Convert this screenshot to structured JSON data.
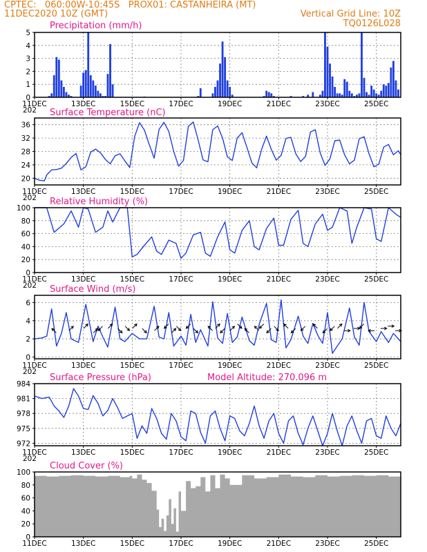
{
  "header": {
    "line1_left": "CPTEC:   060:00W-10:45S   PROX01: CASTANHEIRA (MT)",
    "line2_left": "11DEC2020 10Z (GMT)",
    "line2_right": "Vertical Grid Line: 10Z",
    "line3_right": "TQ0126L028",
    "altitude_label": "Model Altitude: 270.096  m"
  },
  "colors": {
    "header": "#e07b14",
    "panel_title": "#e3178a",
    "series": "#1f3fe0",
    "arrow": "#000000",
    "cloud": "#a9a9a9"
  },
  "x_axis": {
    "start_label": "11DEC2020 10Z",
    "total_days": 15,
    "tick_labels": [
      "11DEC",
      "13DEC",
      "15DEC",
      "17DEC",
      "19DEC",
      "21DEC",
      "23DEC",
      "25DEC"
    ],
    "year_stub": "202"
  },
  "chart_data": [
    {
      "id": "precip",
      "type": "bar",
      "title": "Precipitation (mm/h)",
      "ylim": [
        0,
        5
      ],
      "yticks": [
        "0",
        "1",
        "2",
        "3",
        "4",
        "5"
      ],
      "grid": true,
      "x_day": [
        0.6,
        0.7,
        0.8,
        0.9,
        1.0,
        1.1,
        1.2,
        1.3,
        1.4,
        1.5,
        1.9,
        2.0,
        2.1,
        2.2,
        2.3,
        2.4,
        2.5,
        2.6,
        2.7,
        2.8,
        2.9,
        3.0,
        3.1,
        3.2,
        4.5,
        6.7,
        6.8,
        7.3,
        7.4,
        7.5,
        7.6,
        7.7,
        7.8,
        7.9,
        8.0,
        8.1,
        9.4,
        9.5,
        9.6,
        9.7,
        9.8,
        10.5,
        11.0,
        11.2,
        11.4,
        11.7,
        11.8,
        11.9,
        12.0,
        12.1,
        12.2,
        12.3,
        12.4,
        12.5,
        12.6,
        12.7,
        12.8,
        12.9,
        13.0,
        13.1,
        13.2,
        13.3,
        13.4,
        13.5,
        13.6,
        13.7,
        13.8,
        13.9,
        14.0,
        14.1,
        14.2,
        14.3,
        14.4,
        14.5,
        14.6,
        14.7,
        14.8,
        14.9
      ],
      "values": [
        0.1,
        0.3,
        1.7,
        3.1,
        2.9,
        1.3,
        0.8,
        0.4,
        0.2,
        0.1,
        0.9,
        1.9,
        2.1,
        5.0,
        1.7,
        1.3,
        0.9,
        0.5,
        0.3,
        0.1,
        0.1,
        1.8,
        4.1,
        1.0,
        0.05,
        0.1,
        0.7,
        0.3,
        0.8,
        1.3,
        2.6,
        4.3,
        3.1,
        1.3,
        0.8,
        0.2,
        0.1,
        0.5,
        0.4,
        0.3,
        0.1,
        0.1,
        0.1,
        0.2,
        0.4,
        0.2,
        0.5,
        5.0,
        3.9,
        2.6,
        1.6,
        0.8,
        0.3,
        0.3,
        0.2,
        1.4,
        1.2,
        0.5,
        0.3,
        0.1,
        0.2,
        0.3,
        5.0,
        1.5,
        0.4,
        0.2,
        0.9,
        0.6,
        0.3,
        0.2,
        0.5,
        1.0,
        0.9,
        1.1,
        2.3,
        2.8,
        1.3,
        0.6
      ]
    },
    {
      "id": "temperature",
      "type": "line",
      "title": "Surface Temperature (nC)",
      "ylim": [
        18,
        38
      ],
      "yticks": [
        "20",
        "24",
        "28",
        "32",
        "36"
      ],
      "grid": true,
      "x_day": [
        0,
        0.2,
        0.4,
        0.5,
        0.7,
        0.9,
        1.1,
        1.3,
        1.5,
        1.7,
        1.9,
        2.1,
        2.3,
        2.5,
        2.7,
        2.9,
        3.1,
        3.3,
        3.5,
        3.7,
        3.9,
        4.1,
        4.3,
        4.5,
        4.7,
        4.9,
        5.1,
        5.3,
        5.5,
        5.7,
        5.9,
        6.1,
        6.3,
        6.5,
        6.7,
        6.9,
        7.1,
        7.3,
        7.5,
        7.7,
        7.9,
        8.1,
        8.3,
        8.5,
        8.7,
        8.9,
        9.1,
        9.3,
        9.5,
        9.7,
        9.9,
        10.1,
        10.3,
        10.5,
        10.7,
        10.9,
        11.1,
        11.3,
        11.5,
        11.7,
        11.9,
        12.1,
        12.3,
        12.5,
        12.7,
        12.9,
        13.1,
        13.3,
        13.5,
        13.7,
        13.9,
        14.1,
        14.3,
        14.5,
        14.7,
        14.9,
        15.0
      ],
      "values": [
        20,
        19.4,
        19.2,
        21,
        22.5,
        22.6,
        23,
        24.4,
        26.2,
        27.4,
        22.5,
        23.4,
        27.8,
        28.7,
        27.6,
        25.6,
        24.3,
        26.7,
        27.3,
        25.2,
        23.2,
        32.5,
        36.6,
        34.4,
        30.0,
        26.0,
        34.6,
        36.7,
        34.0,
        28.0,
        23.6,
        25.3,
        35.5,
        36.8,
        31.5,
        25.5,
        24.9,
        34.5,
        35.6,
        32.0,
        26.4,
        25.3,
        32.0,
        33.6,
        29.2,
        24.6,
        23.1,
        28.6,
        32.6,
        28.6,
        25.4,
        26.8,
        31.9,
        32.2,
        27.3,
        25.0,
        26.5,
        33.8,
        34.5,
        27.6,
        23.8,
        25.8,
        31.2,
        31.4,
        27.0,
        24.3,
        25.4,
        31.8,
        32.4,
        27.3,
        23.4,
        24.2,
        29.3,
        30.1,
        27.0,
        28.2,
        27.0
      ]
    },
    {
      "id": "humidity",
      "type": "line",
      "title": "Relative Humidity (%)",
      "ylim": [
        0,
        100
      ],
      "yticks": [
        "0",
        "20",
        "40",
        "60",
        "80",
        "100"
      ],
      "grid": true,
      "x_day": [
        0,
        0.5,
        0.8,
        1.2,
        1.5,
        1.8,
        2.0,
        2.2,
        2.5,
        2.8,
        3.0,
        3.2,
        3.5,
        3.8,
        4.0,
        4.2,
        4.5,
        4.8,
        5.0,
        5.2,
        5.5,
        5.8,
        6.0,
        6.2,
        6.5,
        6.8,
        7.0,
        7.2,
        7.5,
        7.8,
        8.0,
        8.2,
        8.5,
        8.8,
        9.0,
        9.2,
        9.5,
        9.8,
        10.0,
        10.2,
        10.5,
        10.8,
        11.0,
        11.2,
        11.5,
        11.8,
        12.0,
        12.2,
        12.5,
        12.8,
        13.0,
        13.2,
        13.5,
        13.8,
        14.0,
        14.2,
        14.5,
        14.8,
        15.0
      ],
      "values": [
        100,
        100,
        62,
        75,
        95,
        70,
        100,
        98,
        62,
        70,
        95,
        78,
        100,
        100,
        24,
        28,
        42,
        55,
        33,
        28,
        50,
        45,
        22,
        30,
        58,
        62,
        30,
        25,
        55,
        78,
        35,
        30,
        65,
        80,
        40,
        35,
        68,
        84,
        42,
        42,
        82,
        96,
        45,
        40,
        75,
        90,
        65,
        70,
        100,
        95,
        45,
        70,
        100,
        98,
        52,
        48,
        100,
        90,
        85
      ]
    },
    {
      "id": "wind",
      "type": "line",
      "title": "Surface Wind (m/s)",
      "ylim": [
        -0.2,
        6.8
      ],
      "yticks": [
        "0",
        "2",
        "4",
        "6"
      ],
      "grid": true,
      "x_day": [
        0,
        0.3,
        0.5,
        0.7,
        0.9,
        1.1,
        1.3,
        1.5,
        1.8,
        2.1,
        2.4,
        2.6,
        2.8,
        3.0,
        3.3,
        3.5,
        3.7,
        4.0,
        4.3,
        4.6,
        4.9,
        5.1,
        5.3,
        5.5,
        5.7,
        6.0,
        6.2,
        6.4,
        6.6,
        6.8,
        7.1,
        7.3,
        7.5,
        7.7,
        7.9,
        8.1,
        8.3,
        8.5,
        8.8,
        9.0,
        9.2,
        9.5,
        9.7,
        9.9,
        10.1,
        10.3,
        10.5,
        10.8,
        11.0,
        11.2,
        11.4,
        11.6,
        11.8,
        12.0,
        12.2,
        12.4,
        12.6,
        12.9,
        13.1,
        13.3,
        13.5,
        13.7,
        14.0,
        14.2,
        14.5,
        14.7,
        15.0
      ],
      "values": [
        2.0,
        2.1,
        2.3,
        5.3,
        1.2,
        2.6,
        4.9,
        2.0,
        1.6,
        5.8,
        1.7,
        3.4,
        2.2,
        1.1,
        5.5,
        2.0,
        1.7,
        2.6,
        2.0,
        2.0,
        5.6,
        2.2,
        2.0,
        4.9,
        1.2,
        2.3,
        1.3,
        4.7,
        1.6,
        3.0,
        1.2,
        6.1,
        2.1,
        1.5,
        4.8,
        1.6,
        2.2,
        4.4,
        1.8,
        1.3,
        3.6,
        5.9,
        1.9,
        1.6,
        6.3,
        1.0,
        1.9,
        4.5,
        2.3,
        1.5,
        3.7,
        2.4,
        1.5,
        4.9,
        0.4,
        1.2,
        2.0,
        5.4,
        2.2,
        1.3,
        6.0,
        2.8,
        1.7,
        2.8,
        1.6,
        2.6,
        1.7
      ],
      "arrows": [
        {
          "day": 0.8,
          "dir": "nw"
        },
        {
          "day": 1.5,
          "dir": "ne"
        },
        {
          "day": 2.1,
          "dir": "ne"
        },
        {
          "day": 2.5,
          "dir": "ne"
        },
        {
          "day": 2.7,
          "dir": "sw"
        },
        {
          "day": 3.1,
          "dir": "ne"
        },
        {
          "day": 3.5,
          "dir": "se"
        },
        {
          "day": 3.8,
          "dir": "se"
        },
        {
          "day": 4.1,
          "dir": "ne"
        },
        {
          "day": 4.5,
          "dir": "se"
        },
        {
          "day": 5.0,
          "dir": "ne"
        },
        {
          "day": 5.4,
          "dir": "sw"
        },
        {
          "day": 5.7,
          "dir": "ne"
        },
        {
          "day": 5.9,
          "dir": "se"
        },
        {
          "day": 6.3,
          "dir": "sw"
        },
        {
          "day": 6.6,
          "dir": "se"
        },
        {
          "day": 7.2,
          "dir": "nw"
        },
        {
          "day": 7.5,
          "dir": "ne"
        },
        {
          "day": 7.7,
          "dir": "sw"
        },
        {
          "day": 8.1,
          "dir": "ne"
        },
        {
          "day": 8.4,
          "dir": "se"
        },
        {
          "day": 8.7,
          "dir": "nw"
        },
        {
          "day": 9.1,
          "dir": "nw"
        },
        {
          "day": 9.3,
          "dir": "sw"
        },
        {
          "day": 9.6,
          "dir": "sw"
        },
        {
          "day": 9.9,
          "dir": "se"
        },
        {
          "day": 10.3,
          "dir": "nw"
        },
        {
          "day": 10.6,
          "dir": "sw"
        },
        {
          "day": 11.0,
          "dir": "sw"
        },
        {
          "day": 11.5,
          "dir": "nw"
        },
        {
          "day": 11.9,
          "dir": "sw"
        },
        {
          "day": 12.2,
          "dir": "sw"
        },
        {
          "day": 12.5,
          "dir": "ne"
        },
        {
          "day": 12.8,
          "dir": "e"
        },
        {
          "day": 13.2,
          "dir": "e"
        },
        {
          "day": 13.4,
          "dir": "sw"
        },
        {
          "day": 13.8,
          "dir": "w"
        },
        {
          "day": 14.3,
          "dir": "e"
        },
        {
          "day": 14.6,
          "dir": "e"
        },
        {
          "day": 14.9,
          "dir": "e"
        }
      ]
    },
    {
      "id": "pressure",
      "type": "line",
      "title": "Surface Pressure (hPa)",
      "ylim": [
        971.5,
        984
      ],
      "yticks": [
        "972",
        "975",
        "978",
        "981",
        "984"
      ],
      "grid": true,
      "x_day": [
        0,
        0.3,
        0.6,
        0.8,
        1.0,
        1.2,
        1.4,
        1.6,
        1.8,
        2.0,
        2.2,
        2.4,
        2.6,
        2.8,
        3.0,
        3.2,
        3.4,
        3.6,
        3.8,
        4.0,
        4.2,
        4.4,
        4.6,
        4.8,
        5.0,
        5.2,
        5.4,
        5.6,
        5.8,
        6.0,
        6.2,
        6.4,
        6.6,
        6.8,
        7.0,
        7.2,
        7.4,
        7.6,
        7.8,
        8.0,
        8.2,
        8.4,
        8.6,
        8.8,
        9.0,
        9.2,
        9.4,
        9.6,
        9.8,
        10.0,
        10.2,
        10.4,
        10.6,
        10.8,
        11.0,
        11.2,
        11.4,
        11.6,
        11.8,
        12.0,
        12.2,
        12.4,
        12.6,
        12.8,
        13.0,
        13.2,
        13.4,
        13.6,
        13.8,
        14.0,
        14.2,
        14.4,
        14.6,
        14.8,
        15.0
      ],
      "values": [
        981.5,
        981,
        981.3,
        979.5,
        978.5,
        977.2,
        979.5,
        983.0,
        981.5,
        979.0,
        978.8,
        981.6,
        980.0,
        977.5,
        978.6,
        981.0,
        979.2,
        977.0,
        977.5,
        978.0,
        973.0,
        975.5,
        974.0,
        979.0,
        977.0,
        974.0,
        972.8,
        978.0,
        976.5,
        973.3,
        972.5,
        978.5,
        978.0,
        974.2,
        972.0,
        977.5,
        978.5,
        975.0,
        972.5,
        977.5,
        977.0,
        974.5,
        973.5,
        976.0,
        979.5,
        975.5,
        973.0,
        976.5,
        978.0,
        974.0,
        972.0,
        976.5,
        977.5,
        974.0,
        971.7,
        975.0,
        977.5,
        974.5,
        971.5,
        974.0,
        978.0,
        974.5,
        971.5,
        975.5,
        977.5,
        974.5,
        972.0,
        976.5,
        977.0,
        973.5,
        973.0,
        977.5,
        975.0,
        973.5,
        976.0
      ]
    },
    {
      "id": "cloud",
      "type": "area",
      "title": "Cloud Cover (%)",
      "ylim": [
        0,
        100
      ],
      "yticks": [
        "0",
        "20",
        "40",
        "60",
        "80",
        "100"
      ],
      "grid": false,
      "x_day": [
        0,
        0.5,
        1.0,
        1.5,
        2.0,
        2.5,
        3.0,
        3.5,
        3.9,
        4.0,
        4.2,
        4.4,
        4.6,
        4.8,
        5.0,
        5.1,
        5.2,
        5.3,
        5.4,
        5.5,
        5.6,
        5.7,
        5.8,
        5.9,
        6.0,
        6.2,
        6.4,
        6.6,
        6.8,
        7.0,
        7.2,
        7.4,
        7.6,
        7.8,
        8.0,
        8.5,
        9.0,
        9.5,
        10.0,
        10.5,
        11.0,
        11.5,
        12.0,
        12.5,
        13.0,
        13.5,
        14.0,
        14.5,
        15.0
      ],
      "values": [
        94,
        93,
        94,
        95,
        94,
        93,
        94,
        92,
        94,
        90,
        96,
        88,
        83,
        71,
        42,
        15,
        28,
        9,
        33,
        58,
        20,
        44,
        8,
        70,
        40,
        86,
        75,
        78,
        92,
        70,
        95,
        75,
        96,
        90,
        80,
        95,
        90,
        92,
        96,
        93,
        92,
        95,
        93,
        94,
        95,
        94,
        95,
        93,
        95
      ]
    }
  ]
}
